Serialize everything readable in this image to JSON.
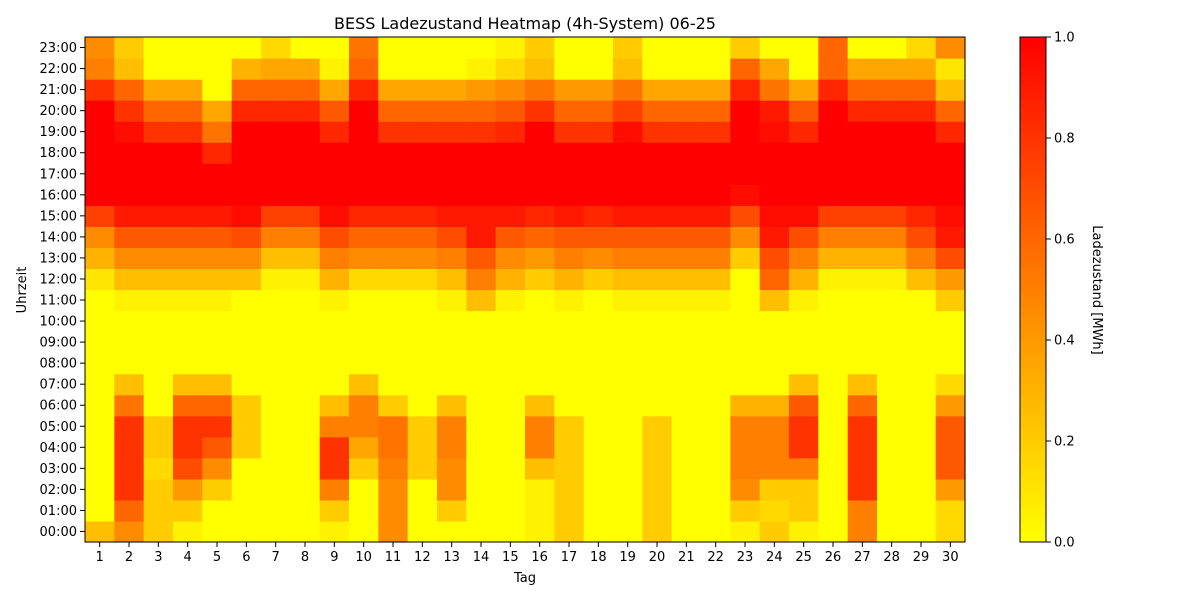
{
  "chart_data": {
    "type": "heatmap",
    "title": "BESS Ladezustand Heatmap (4h-System) 06-25",
    "xlabel": "Tag",
    "ylabel": "Uhrzeit",
    "colorbar_label": "Ladezustand [MWh]",
    "x": [
      1,
      2,
      3,
      4,
      5,
      6,
      7,
      8,
      9,
      10,
      11,
      12,
      13,
      14,
      15,
      16,
      17,
      18,
      19,
      20,
      21,
      22,
      23,
      24,
      25,
      26,
      27,
      28,
      29,
      30
    ],
    "y": [
      "00:00",
      "01:00",
      "02:00",
      "03:00",
      "04:00",
      "05:00",
      "06:00",
      "07:00",
      "08:00",
      "09:00",
      "10:00",
      "11:00",
      "12:00",
      "13:00",
      "14:00",
      "15:00",
      "16:00",
      "17:00",
      "18:00",
      "19:00",
      "20:00",
      "21:00",
      "22:00",
      "23:00"
    ],
    "zlim": [
      0,
      1
    ],
    "colorbar_ticks": [
      "0.0",
      "0.2",
      "0.4",
      "0.6",
      "0.8",
      "1.0"
    ],
    "colormap": {
      "low": "#ffff00",
      "high": "#ff0000"
    },
    "grid": false,
    "z": [
      [
        0.25,
        0.45,
        0.2,
        0.05,
        0.0,
        0.0,
        0.0,
        0.0,
        0.05,
        0.0,
        0.45,
        0.0,
        0.0,
        0.0,
        0.0,
        0.05,
        0.2,
        0.0,
        0.0,
        0.2,
        0.0,
        0.0,
        0.05,
        0.2,
        0.05,
        0.0,
        0.5,
        0.0,
        0.0,
        0.15
      ],
      [
        0.0,
        0.6,
        0.2,
        0.2,
        0.0,
        0.0,
        0.0,
        0.0,
        0.2,
        0.0,
        0.45,
        0.0,
        0.2,
        0.0,
        0.0,
        0.05,
        0.2,
        0.0,
        0.0,
        0.2,
        0.0,
        0.0,
        0.2,
        0.15,
        0.2,
        0.0,
        0.5,
        0.0,
        0.0,
        0.15
      ],
      [
        0.0,
        0.8,
        0.2,
        0.4,
        0.2,
        0.0,
        0.0,
        0.0,
        0.5,
        0.0,
        0.45,
        0.0,
        0.45,
        0.0,
        0.0,
        0.05,
        0.2,
        0.0,
        0.0,
        0.2,
        0.0,
        0.0,
        0.45,
        0.2,
        0.2,
        0.0,
        0.8,
        0.0,
        0.0,
        0.4
      ],
      [
        0.0,
        0.8,
        0.15,
        0.7,
        0.45,
        0.0,
        0.0,
        0.0,
        0.8,
        0.2,
        0.5,
        0.2,
        0.45,
        0.0,
        0.0,
        0.25,
        0.2,
        0.0,
        0.0,
        0.2,
        0.0,
        0.0,
        0.5,
        0.5,
        0.5,
        0.0,
        0.8,
        0.0,
        0.0,
        0.65
      ],
      [
        0.0,
        0.8,
        0.2,
        0.8,
        0.65,
        0.2,
        0.0,
        0.0,
        0.8,
        0.35,
        0.55,
        0.2,
        0.5,
        0.0,
        0.0,
        0.5,
        0.2,
        0.0,
        0.0,
        0.2,
        0.0,
        0.0,
        0.5,
        0.5,
        0.8,
        0.0,
        0.8,
        0.0,
        0.0,
        0.65
      ],
      [
        0.0,
        0.8,
        0.2,
        0.8,
        0.8,
        0.2,
        0.0,
        0.0,
        0.5,
        0.5,
        0.55,
        0.2,
        0.5,
        0.0,
        0.0,
        0.5,
        0.2,
        0.0,
        0.0,
        0.2,
        0.0,
        0.0,
        0.5,
        0.5,
        0.8,
        0.0,
        0.8,
        0.0,
        0.0,
        0.65
      ],
      [
        0.0,
        0.55,
        0.0,
        0.6,
        0.6,
        0.2,
        0.0,
        0.0,
        0.25,
        0.5,
        0.2,
        0.0,
        0.25,
        0.0,
        0.0,
        0.25,
        0.0,
        0.0,
        0.0,
        0.0,
        0.0,
        0.0,
        0.3,
        0.3,
        0.65,
        0.0,
        0.6,
        0.0,
        0.0,
        0.4
      ],
      [
        0.0,
        0.25,
        0.0,
        0.25,
        0.25,
        0.0,
        0.0,
        0.0,
        0.0,
        0.25,
        0.0,
        0.0,
        0.0,
        0.0,
        0.0,
        0.0,
        0.0,
        0.0,
        0.0,
        0.0,
        0.0,
        0.0,
        0.0,
        0.0,
        0.25,
        0.0,
        0.25,
        0.0,
        0.0,
        0.15
      ],
      [
        0.0,
        0.0,
        0.0,
        0.0,
        0.0,
        0.0,
        0.0,
        0.0,
        0.0,
        0.0,
        0.0,
        0.0,
        0.0,
        0.0,
        0.0,
        0.0,
        0.0,
        0.0,
        0.0,
        0.0,
        0.0,
        0.0,
        0.0,
        0.0,
        0.0,
        0.0,
        0.0,
        0.0,
        0.0,
        0.0
      ],
      [
        0.0,
        0.0,
        0.0,
        0.0,
        0.0,
        0.0,
        0.0,
        0.0,
        0.0,
        0.0,
        0.0,
        0.0,
        0.0,
        0.0,
        0.0,
        0.0,
        0.0,
        0.0,
        0.0,
        0.0,
        0.0,
        0.0,
        0.0,
        0.0,
        0.0,
        0.0,
        0.0,
        0.0,
        0.0,
        0.0
      ],
      [
        0.0,
        0.0,
        0.0,
        0.0,
        0.0,
        0.0,
        0.0,
        0.0,
        0.0,
        0.0,
        0.0,
        0.0,
        0.0,
        0.0,
        0.0,
        0.0,
        0.0,
        0.0,
        0.0,
        0.0,
        0.0,
        0.0,
        0.0,
        0.0,
        0.0,
        0.0,
        0.0,
        0.0,
        0.0,
        0.0
      ],
      [
        0.0,
        0.05,
        0.05,
        0.05,
        0.05,
        0.0,
        0.0,
        0.0,
        0.05,
        0.0,
        0.0,
        0.0,
        0.05,
        0.25,
        0.05,
        0.0,
        0.05,
        0.0,
        0.05,
        0.05,
        0.05,
        0.05,
        0.0,
        0.25,
        0.05,
        0.0,
        0.0,
        0.0,
        0.0,
        0.2
      ],
      [
        0.1,
        0.25,
        0.25,
        0.25,
        0.25,
        0.25,
        0.05,
        0.05,
        0.3,
        0.15,
        0.15,
        0.15,
        0.25,
        0.5,
        0.3,
        0.2,
        0.3,
        0.2,
        0.25,
        0.25,
        0.25,
        0.25,
        0.0,
        0.6,
        0.3,
        0.05,
        0.05,
        0.05,
        0.25,
        0.4
      ],
      [
        0.3,
        0.45,
        0.45,
        0.45,
        0.45,
        0.45,
        0.25,
        0.25,
        0.5,
        0.45,
        0.45,
        0.45,
        0.5,
        0.65,
        0.45,
        0.4,
        0.5,
        0.45,
        0.5,
        0.5,
        0.5,
        0.5,
        0.2,
        0.7,
        0.5,
        0.3,
        0.3,
        0.3,
        0.5,
        0.7
      ],
      [
        0.45,
        0.65,
        0.65,
        0.65,
        0.65,
        0.7,
        0.5,
        0.5,
        0.7,
        0.6,
        0.6,
        0.6,
        0.7,
        0.9,
        0.65,
        0.6,
        0.65,
        0.65,
        0.65,
        0.65,
        0.65,
        0.65,
        0.45,
        0.9,
        0.7,
        0.5,
        0.5,
        0.5,
        0.7,
        0.9
      ],
      [
        0.75,
        0.9,
        0.9,
        0.9,
        0.9,
        0.95,
        0.75,
        0.75,
        0.95,
        0.85,
        0.85,
        0.85,
        0.9,
        0.9,
        0.9,
        0.85,
        0.9,
        0.85,
        0.9,
        0.9,
        0.9,
        0.9,
        0.7,
        0.95,
        0.95,
        0.75,
        0.75,
        0.75,
        0.85,
        0.95
      ],
      [
        1.0,
        1.0,
        1.0,
        1.0,
        1.0,
        1.0,
        1.0,
        1.0,
        1.0,
        1.0,
        1.0,
        1.0,
        1.0,
        1.0,
        1.0,
        1.0,
        1.0,
        1.0,
        1.0,
        1.0,
        1.0,
        1.0,
        0.95,
        1.0,
        1.0,
        1.0,
        1.0,
        1.0,
        1.0,
        1.0
      ],
      [
        1.0,
        1.0,
        1.0,
        1.0,
        1.0,
        1.0,
        1.0,
        1.0,
        1.0,
        1.0,
        1.0,
        1.0,
        1.0,
        1.0,
        1.0,
        1.0,
        1.0,
        1.0,
        1.0,
        1.0,
        1.0,
        1.0,
        1.0,
        1.0,
        1.0,
        1.0,
        1.0,
        1.0,
        1.0,
        1.0
      ],
      [
        1.0,
        1.0,
        1.0,
        1.0,
        0.85,
        1.0,
        1.0,
        1.0,
        1.0,
        1.0,
        1.0,
        1.0,
        1.0,
        1.0,
        1.0,
        1.0,
        1.0,
        1.0,
        1.0,
        1.0,
        1.0,
        1.0,
        1.0,
        1.0,
        1.0,
        1.0,
        1.0,
        1.0,
        1.0,
        1.0
      ],
      [
        1.0,
        0.95,
        0.8,
        0.8,
        0.55,
        1.0,
        1.0,
        1.0,
        0.85,
        1.0,
        0.8,
        0.8,
        0.8,
        0.8,
        0.85,
        1.0,
        0.8,
        0.8,
        0.95,
        0.8,
        0.8,
        0.8,
        1.0,
        0.95,
        0.85,
        1.0,
        1.0,
        1.0,
        1.0,
        0.85
      ],
      [
        1.0,
        0.8,
        0.6,
        0.6,
        0.35,
        0.85,
        0.85,
        0.85,
        0.65,
        1.0,
        0.6,
        0.6,
        0.6,
        0.6,
        0.65,
        0.8,
        0.6,
        0.6,
        0.75,
        0.6,
        0.6,
        0.6,
        1.0,
        0.9,
        0.65,
        1.0,
        0.85,
        0.85,
        0.85,
        0.6
      ],
      [
        0.8,
        0.6,
        0.35,
        0.35,
        0.0,
        0.6,
        0.6,
        0.6,
        0.35,
        0.85,
        0.35,
        0.35,
        0.35,
        0.4,
        0.45,
        0.55,
        0.4,
        0.4,
        0.55,
        0.35,
        0.35,
        0.35,
        0.85,
        0.55,
        0.35,
        0.85,
        0.6,
        0.6,
        0.6,
        0.25
      ],
      [
        0.5,
        0.25,
        0.0,
        0.0,
        0.0,
        0.3,
        0.35,
        0.35,
        0.05,
        0.6,
        0.0,
        0.0,
        0.0,
        0.05,
        0.15,
        0.25,
        0.0,
        0.0,
        0.25,
        0.0,
        0.0,
        0.0,
        0.6,
        0.35,
        0.0,
        0.6,
        0.35,
        0.35,
        0.35,
        0.1
      ],
      [
        0.45,
        0.2,
        0.0,
        0.0,
        0.0,
        0.0,
        0.15,
        0.0,
        0.0,
        0.55,
        0.0,
        0.0,
        0.0,
        0.0,
        0.05,
        0.2,
        0.0,
        0.0,
        0.2,
        0.0,
        0.0,
        0.0,
        0.2,
        0.0,
        0.0,
        0.6,
        0.0,
        0.0,
        0.15,
        0.45
      ]
    ]
  }
}
